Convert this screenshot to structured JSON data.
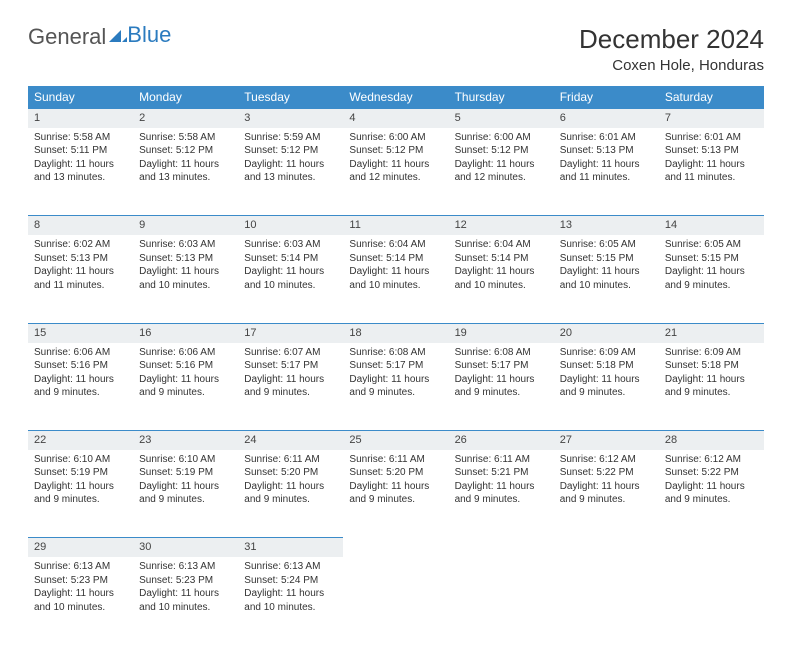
{
  "logo": {
    "text1": "General",
    "text2": "Blue"
  },
  "title": "December 2024",
  "location": "Coxen Hole, Honduras",
  "colors": {
    "header_bg": "#3b8bc9",
    "header_text": "#ffffff",
    "daynum_bg": "#eceff1",
    "border": "#3b8bc9",
    "text": "#333333",
    "logo_gray": "#555555",
    "logo_blue": "#2b7bbf",
    "page_bg": "#ffffff"
  },
  "weekdays": [
    "Sunday",
    "Monday",
    "Tuesday",
    "Wednesday",
    "Thursday",
    "Friday",
    "Saturday"
  ],
  "weeks": [
    [
      {
        "n": "1",
        "sr": "5:58 AM",
        "ss": "5:11 PM",
        "dl": "11 hours and 13 minutes."
      },
      {
        "n": "2",
        "sr": "5:58 AM",
        "ss": "5:12 PM",
        "dl": "11 hours and 13 minutes."
      },
      {
        "n": "3",
        "sr": "5:59 AM",
        "ss": "5:12 PM",
        "dl": "11 hours and 13 minutes."
      },
      {
        "n": "4",
        "sr": "6:00 AM",
        "ss": "5:12 PM",
        "dl": "11 hours and 12 minutes."
      },
      {
        "n": "5",
        "sr": "6:00 AM",
        "ss": "5:12 PM",
        "dl": "11 hours and 12 minutes."
      },
      {
        "n": "6",
        "sr": "6:01 AM",
        "ss": "5:13 PM",
        "dl": "11 hours and 11 minutes."
      },
      {
        "n": "7",
        "sr": "6:01 AM",
        "ss": "5:13 PM",
        "dl": "11 hours and 11 minutes."
      }
    ],
    [
      {
        "n": "8",
        "sr": "6:02 AM",
        "ss": "5:13 PM",
        "dl": "11 hours and 11 minutes."
      },
      {
        "n": "9",
        "sr": "6:03 AM",
        "ss": "5:13 PM",
        "dl": "11 hours and 10 minutes."
      },
      {
        "n": "10",
        "sr": "6:03 AM",
        "ss": "5:14 PM",
        "dl": "11 hours and 10 minutes."
      },
      {
        "n": "11",
        "sr": "6:04 AM",
        "ss": "5:14 PM",
        "dl": "11 hours and 10 minutes."
      },
      {
        "n": "12",
        "sr": "6:04 AM",
        "ss": "5:14 PM",
        "dl": "11 hours and 10 minutes."
      },
      {
        "n": "13",
        "sr": "6:05 AM",
        "ss": "5:15 PM",
        "dl": "11 hours and 10 minutes."
      },
      {
        "n": "14",
        "sr": "6:05 AM",
        "ss": "5:15 PM",
        "dl": "11 hours and 9 minutes."
      }
    ],
    [
      {
        "n": "15",
        "sr": "6:06 AM",
        "ss": "5:16 PM",
        "dl": "11 hours and 9 minutes."
      },
      {
        "n": "16",
        "sr": "6:06 AM",
        "ss": "5:16 PM",
        "dl": "11 hours and 9 minutes."
      },
      {
        "n": "17",
        "sr": "6:07 AM",
        "ss": "5:17 PM",
        "dl": "11 hours and 9 minutes."
      },
      {
        "n": "18",
        "sr": "6:08 AM",
        "ss": "5:17 PM",
        "dl": "11 hours and 9 minutes."
      },
      {
        "n": "19",
        "sr": "6:08 AM",
        "ss": "5:17 PM",
        "dl": "11 hours and 9 minutes."
      },
      {
        "n": "20",
        "sr": "6:09 AM",
        "ss": "5:18 PM",
        "dl": "11 hours and 9 minutes."
      },
      {
        "n": "21",
        "sr": "6:09 AM",
        "ss": "5:18 PM",
        "dl": "11 hours and 9 minutes."
      }
    ],
    [
      {
        "n": "22",
        "sr": "6:10 AM",
        "ss": "5:19 PM",
        "dl": "11 hours and 9 minutes."
      },
      {
        "n": "23",
        "sr": "6:10 AM",
        "ss": "5:19 PM",
        "dl": "11 hours and 9 minutes."
      },
      {
        "n": "24",
        "sr": "6:11 AM",
        "ss": "5:20 PM",
        "dl": "11 hours and 9 minutes."
      },
      {
        "n": "25",
        "sr": "6:11 AM",
        "ss": "5:20 PM",
        "dl": "11 hours and 9 minutes."
      },
      {
        "n": "26",
        "sr": "6:11 AM",
        "ss": "5:21 PM",
        "dl": "11 hours and 9 minutes."
      },
      {
        "n": "27",
        "sr": "6:12 AM",
        "ss": "5:22 PM",
        "dl": "11 hours and 9 minutes."
      },
      {
        "n": "28",
        "sr": "6:12 AM",
        "ss": "5:22 PM",
        "dl": "11 hours and 9 minutes."
      }
    ],
    [
      {
        "n": "29",
        "sr": "6:13 AM",
        "ss": "5:23 PM",
        "dl": "11 hours and 10 minutes."
      },
      {
        "n": "30",
        "sr": "6:13 AM",
        "ss": "5:23 PM",
        "dl": "11 hours and 10 minutes."
      },
      {
        "n": "31",
        "sr": "6:13 AM",
        "ss": "5:24 PM",
        "dl": "11 hours and 10 minutes."
      },
      null,
      null,
      null,
      null
    ]
  ],
  "labels": {
    "sunrise": "Sunrise:",
    "sunset": "Sunset:",
    "daylight": "Daylight:"
  }
}
